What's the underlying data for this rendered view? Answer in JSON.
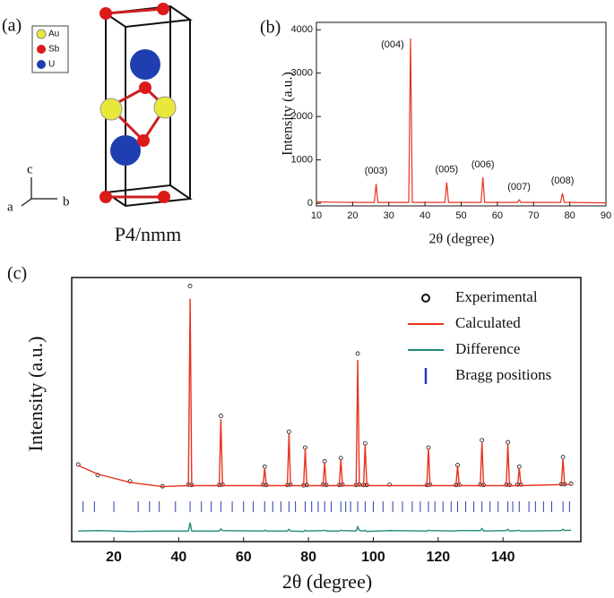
{
  "structure": {
    "label": "(a)",
    "legend": [
      "Au",
      "Sb",
      "U"
    ],
    "axes": [
      "c",
      "a",
      "b"
    ],
    "space_group": "P4/nmm"
  },
  "chart_data": [
    {
      "type": "line",
      "label": "(b)",
      "x_label": "2θ (degree)",
      "y_label": "Intensity (a.u.)",
      "x": [
        10,
        20,
        26,
        26.5,
        27,
        30,
        35.5,
        36,
        36.5,
        40,
        45.5,
        46,
        46.5,
        50,
        55.5,
        56,
        56.5,
        60,
        65.5,
        66,
        66.5,
        70,
        77.5,
        78,
        78.5,
        90
      ],
      "series": [
        {
          "color": "#e8321e",
          "values": [
            30,
            20,
            20,
            450,
            20,
            20,
            20,
            3800,
            20,
            20,
            20,
            480,
            20,
            20,
            20,
            600,
            20,
            20,
            20,
            80,
            20,
            20,
            20,
            230,
            20,
            10
          ]
        }
      ],
      "annotations": [
        "(003)",
        "(004)",
        "(005)",
        "(006)",
        "(007)",
        "(008)"
      ],
      "xlim": [
        10,
        90
      ],
      "xticks": [
        10,
        20,
        30,
        40,
        50,
        60,
        70,
        80,
        90
      ],
      "ylim": [
        -60,
        4170
      ],
      "yticks": [
        0,
        1000,
        2000,
        3000,
        4000
      ]
    },
    {
      "type": "line",
      "label": "(c)",
      "x_label": "2θ (degree)",
      "y_label": "Intensity (a.u.)",
      "x": [
        9,
        15,
        25,
        35,
        43,
        43.5,
        44,
        52.5,
        53,
        53.5,
        66,
        66.5,
        67,
        73.5,
        74,
        74.5,
        78.5,
        79,
        79.5,
        84.5,
        85,
        85.5,
        89.5,
        90,
        90.5,
        94.7,
        95.2,
        95.7,
        97,
        97.5,
        98,
        105,
        116.5,
        117,
        117.5,
        125.5,
        126,
        126.5,
        133,
        133.5,
        134,
        141,
        141.5,
        142,
        144.5,
        145,
        145.5,
        158,
        158.5,
        159,
        161
      ],
      "series": [
        {
          "name": "Experimental",
          "color": "#111111",
          "marker": "circle",
          "values": [
            115,
            65,
            35,
            12,
            20,
            960,
            18,
            18,
            345,
            20,
            20,
            105,
            18,
            18,
            270,
            20,
            16,
            195,
            18,
            20,
            130,
            18,
            18,
            145,
            20,
            18,
            640,
            20,
            18,
            215,
            18,
            20,
            18,
            195,
            20,
            18,
            112,
            20,
            20,
            230,
            18,
            20,
            220,
            18,
            20,
            105,
            20,
            22,
            150,
            22,
            24
          ]
        },
        {
          "name": "Calculated",
          "color": "#e8321e",
          "values": [
            110,
            70,
            30,
            10,
            15,
            900,
            15,
            15,
            330,
            15,
            15,
            100,
            15,
            15,
            260,
            15,
            15,
            190,
            15,
            15,
            125,
            15,
            15,
            140,
            15,
            15,
            610,
            15,
            15,
            210,
            15,
            15,
            15,
            190,
            15,
            15,
            110,
            15,
            15,
            220,
            15,
            15,
            210,
            15,
            15,
            100,
            15,
            20,
            140,
            20,
            20
          ]
        },
        {
          "name": "Difference",
          "color": "#1f8a7a",
          "values": [
            -200,
            -198,
            -202,
            -200,
            -200,
            -160,
            -200,
            -200,
            -190,
            -198,
            -200,
            -196,
            -200,
            -200,
            -192,
            -200,
            -202,
            -196,
            -200,
            -198,
            -196,
            -200,
            -200,
            -196,
            -198,
            -200,
            -180,
            -198,
            -200,
            -196,
            -202,
            -198,
            -200,
            -196,
            -198,
            -200,
            -198,
            -198,
            -198,
            -188,
            -200,
            -198,
            -192,
            -200,
            -198,
            -196,
            -200,
            -198,
            -192,
            -198,
            -196
          ]
        },
        {
          "name": "Bragg positions",
          "color": "#2a3fb0",
          "marker": "tick",
          "x": [
            10.5,
            14,
            20,
            27.5,
            31,
            34,
            39,
            43.5,
            47,
            50,
            53,
            56.5,
            60,
            63,
            66.5,
            69,
            71.5,
            74,
            76,
            79,
            81,
            83,
            85,
            87,
            90,
            91.5,
            93,
            95.2,
            97.5,
            100,
            103,
            106,
            109,
            112,
            114.5,
            117,
            119,
            121.5,
            124,
            126,
            128.5,
            131,
            133.5,
            136,
            138.5,
            141.5,
            143,
            145,
            148,
            150,
            152.5,
            155,
            158.5,
            160.5
          ]
        }
      ],
      "xlim": [
        7,
        164
      ],
      "xticks": [
        20,
        40,
        60,
        80,
        100,
        120,
        140
      ],
      "ylim": [
        -250,
        1000
      ]
    }
  ]
}
